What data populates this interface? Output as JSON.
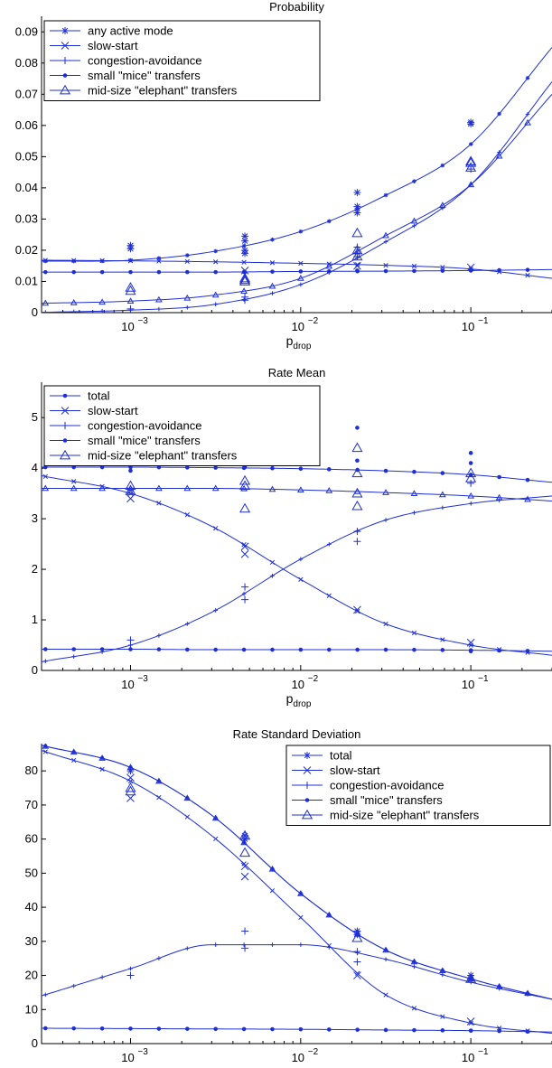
{
  "color": "#1f2fd6",
  "chart_data": [
    {
      "type": "line",
      "title": "Probability",
      "xlabel": "p",
      "xlabel_sub": "drop",
      "xscale": "log",
      "xlim": [
        0.0003,
        0.3
      ],
      "ylim": [
        0,
        0.095
      ],
      "yticks": [
        0,
        0.01,
        0.02,
        0.03,
        0.04,
        0.05,
        0.06,
        0.07,
        0.08,
        0.09
      ],
      "ytick_labels": [
        "0",
        "0.01",
        "0.02",
        "0.03",
        "0.04",
        "0.05",
        "0.06",
        "0.07",
        "0.08",
        "0.09"
      ],
      "xticks": [
        0.001,
        0.01,
        0.1
      ],
      "xtick_labels": [
        {
          "base": "10",
          "exp": "−3"
        },
        {
          "base": "10",
          "exp": "−2"
        },
        {
          "base": "10",
          "exp": "−1"
        }
      ],
      "legend_position": "top-left",
      "series": [
        {
          "name": "any active mode",
          "marker": "star",
          "x": [
            0.0003,
            0.001,
            0.003,
            0.01,
            0.03,
            0.1,
            0.3
          ],
          "y": [
            0.0165,
            0.0168,
            0.0195,
            0.026,
            0.037,
            0.054,
            0.085
          ],
          "samples": [
            [
              0.001,
              0.0205
            ],
            [
              0.001,
              0.0215
            ],
            [
              0.0047,
              0.023
            ],
            [
              0.0047,
              0.0245
            ],
            [
              0.0047,
              0.019
            ],
            [
              0.0047,
              0.02
            ],
            [
              0.0215,
              0.032
            ],
            [
              0.0215,
              0.034
            ],
            [
              0.0215,
              0.0385
            ],
            [
              0.1,
              0.061
            ],
            [
              0.1,
              0.0605
            ]
          ]
        },
        {
          "name": "slow-start",
          "marker": "x",
          "x": [
            0.0003,
            0.001,
            0.003,
            0.01,
            0.03,
            0.1,
            0.3
          ],
          "y": [
            0.0168,
            0.0166,
            0.0163,
            0.0158,
            0.0152,
            0.014,
            0.011
          ],
          "samples": [
            [
              0.0047,
              0.0135
            ],
            [
              0.0215,
              0.015
            ],
            [
              0.1,
              0.0145
            ]
          ]
        },
        {
          "name": "congestion-avoidance",
          "marker": "plus",
          "x": [
            0.0003,
            0.001,
            0.003,
            0.01,
            0.03,
            0.1,
            0.3
          ],
          "y": [
            0.0001,
            0.0008,
            0.0025,
            0.009,
            0.022,
            0.041,
            0.074
          ],
          "samples": [
            [
              0.001,
              0.0012
            ],
            [
              0.0047,
              0.004
            ],
            [
              0.0047,
              0.005
            ],
            [
              0.0215,
              0.018
            ],
            [
              0.0215,
              0.021
            ],
            [
              0.1,
              0.046
            ]
          ]
        },
        {
          "name": "small \"mice\" transfers",
          "marker": "dot",
          "x": [
            0.0003,
            0.001,
            0.003,
            0.01,
            0.03,
            0.1,
            0.3
          ],
          "y": [
            0.013,
            0.013,
            0.013,
            0.0132,
            0.0133,
            0.0135,
            0.0138
          ],
          "samples": [
            [
              0.0047,
              0.013
            ],
            [
              0.0215,
              0.0135
            ],
            [
              0.1,
              0.0135
            ]
          ]
        },
        {
          "name": "mid-size \"elephant\" transfers",
          "marker": "triangle",
          "x": [
            0.0003,
            0.001,
            0.003,
            0.01,
            0.03,
            0.1,
            0.3
          ],
          "y": [
            0.003,
            0.0037,
            0.0055,
            0.011,
            0.024,
            0.041,
            0.07
          ],
          "samples": [
            [
              0.001,
              0.007
            ],
            [
              0.001,
              0.008
            ],
            [
              0.0047,
              0.01
            ],
            [
              0.0047,
              0.0105
            ],
            [
              0.0047,
              0.011
            ],
            [
              0.0215,
              0.018
            ],
            [
              0.0215,
              0.02
            ],
            [
              0.0215,
              0.0255
            ],
            [
              0.1,
              0.0465
            ],
            [
              0.1,
              0.048
            ],
            [
              0.1,
              0.0485
            ]
          ]
        }
      ]
    },
    {
      "type": "line",
      "title": "Rate Mean",
      "xlabel": "p",
      "xlabel_sub": "drop",
      "xscale": "log",
      "xlim": [
        0.0003,
        0.3
      ],
      "ylim": [
        0,
        5.7
      ],
      "yticks": [
        0,
        1,
        2,
        3,
        4,
        5
      ],
      "ytick_labels": [
        "0",
        "1",
        "2",
        "3",
        "4",
        "5"
      ],
      "xticks": [
        0.001,
        0.01,
        0.1
      ],
      "xtick_labels": [
        {
          "base": "10",
          "exp": "−3"
        },
        {
          "base": "10",
          "exp": "−2"
        },
        {
          "base": "10",
          "exp": "−1"
        }
      ],
      "legend_position": "top-left",
      "series": [
        {
          "name": "total",
          "marker": "dot",
          "x": [
            0.0003,
            0.001,
            0.003,
            0.01,
            0.03,
            0.1,
            0.3
          ],
          "y": [
            4.02,
            4.02,
            4.01,
            3.99,
            3.95,
            3.87,
            3.72
          ],
          "samples": [
            [
              0.001,
              3.95
            ],
            [
              0.001,
              4.05
            ],
            [
              0.0047,
              4.15
            ],
            [
              0.0047,
              4.02
            ],
            [
              0.0215,
              4.8
            ],
            [
              0.0215,
              4.15
            ],
            [
              0.1,
              4.3
            ],
            [
              0.1,
              4.1
            ]
          ]
        },
        {
          "name": "slow-start",
          "marker": "x",
          "x": [
            0.0003,
            0.001,
            0.003,
            0.01,
            0.03,
            0.1,
            0.3
          ],
          "y": [
            3.85,
            3.5,
            2.85,
            1.8,
            0.95,
            0.5,
            0.3
          ],
          "samples": [
            [
              0.001,
              3.4
            ],
            [
              0.001,
              3.55
            ],
            [
              0.0047,
              2.45
            ],
            [
              0.0047,
              2.3
            ],
            [
              0.0215,
              1.2
            ],
            [
              0.1,
              0.55
            ]
          ]
        },
        {
          "name": "congestion-avoidance",
          "marker": "plus",
          "x": [
            0.0003,
            0.001,
            0.003,
            0.01,
            0.03,
            0.1,
            0.3
          ],
          "y": [
            0.17,
            0.5,
            1.15,
            2.2,
            2.95,
            3.3,
            3.45
          ],
          "samples": [
            [
              0.001,
              0.6
            ],
            [
              0.0047,
              1.65
            ],
            [
              0.0047,
              1.4
            ],
            [
              0.0215,
              2.75
            ],
            [
              0.0215,
              2.55
            ],
            [
              0.1,
              3.7
            ]
          ]
        },
        {
          "name": "small \"mice\" transfers",
          "marker": "dot",
          "x": [
            0.0003,
            0.001,
            0.003,
            0.01,
            0.03,
            0.1,
            0.3
          ],
          "y": [
            0.42,
            0.42,
            0.41,
            0.41,
            0.41,
            0.4,
            0.38
          ],
          "samples": [
            [
              0.1,
              0.38
            ]
          ]
        },
        {
          "name": "mid-size \"elephant\" transfers",
          "marker": "triangle",
          "x": [
            0.0003,
            0.001,
            0.003,
            0.01,
            0.03,
            0.1,
            0.3
          ],
          "y": [
            3.6,
            3.6,
            3.6,
            3.57,
            3.52,
            3.45,
            3.35
          ],
          "samples": [
            [
              0.001,
              3.55
            ],
            [
              0.001,
              3.65
            ],
            [
              0.0047,
              3.2
            ],
            [
              0.0047,
              3.65
            ],
            [
              0.0047,
              3.75
            ],
            [
              0.0215,
              4.4
            ],
            [
              0.0215,
              3.9
            ],
            [
              0.0215,
              3.5
            ],
            [
              0.0215,
              3.25
            ],
            [
              0.1,
              3.8
            ],
            [
              0.1,
              3.9
            ]
          ]
        }
      ]
    },
    {
      "type": "line",
      "title": "Rate Standard Deviation",
      "xlabel": "p",
      "xlabel_sub": "drop",
      "xscale": "log",
      "xlim": [
        0.0003,
        0.3
      ],
      "ylim": [
        0,
        88
      ],
      "yticks": [
        0,
        10,
        20,
        30,
        40,
        50,
        60,
        70,
        80
      ],
      "ytick_labels": [
        "0",
        "10",
        "20",
        "30",
        "40",
        "50",
        "60",
        "70",
        "80"
      ],
      "xticks": [
        0.001,
        0.01,
        0.1
      ],
      "xtick_labels": [
        {
          "base": "10",
          "exp": "−3"
        },
        {
          "base": "10",
          "exp": "−2"
        },
        {
          "base": "10",
          "exp": "−1"
        }
      ],
      "legend_position": "top-right",
      "series": [
        {
          "name": "total",
          "marker": "star",
          "x": [
            0.0003,
            0.001,
            0.003,
            0.01,
            0.03,
            0.1,
            0.3
          ],
          "y": [
            87.5,
            81,
            67,
            44,
            28,
            19,
            13
          ],
          "samples": [
            [
              0.001,
              80
            ],
            [
              0.0047,
              60
            ],
            [
              0.0047,
              61
            ],
            [
              0.0215,
              32
            ],
            [
              0.0215,
              33
            ],
            [
              0.1,
              19
            ],
            [
              0.1,
              20
            ]
          ]
        },
        {
          "name": "slow-start",
          "marker": "x",
          "x": [
            0.0003,
            0.001,
            0.003,
            0.01,
            0.03,
            0.1,
            0.3
          ],
          "y": [
            86,
            77,
            61,
            37,
            15,
            6,
            3
          ],
          "samples": [
            [
              0.001,
              72
            ],
            [
              0.001,
              78
            ],
            [
              0.0047,
              49
            ],
            [
              0.0047,
              52
            ],
            [
              0.0215,
              20
            ],
            [
              0.1,
              6.5
            ]
          ]
        },
        {
          "name": "congestion-avoidance",
          "marker": "plus",
          "x": [
            0.0003,
            0.001,
            0.003,
            0.01,
            0.03,
            0.1,
            0.3
          ],
          "y": [
            14,
            22,
            29,
            29,
            25,
            18,
            13
          ],
          "samples": [
            [
              0.001,
              20
            ],
            [
              0.0047,
              33
            ],
            [
              0.0047,
              28
            ],
            [
              0.0215,
              27
            ],
            [
              0.0215,
              24
            ]
          ]
        },
        {
          "name": "small \"mice\" transfers",
          "marker": "dot",
          "x": [
            0.0003,
            0.001,
            0.003,
            0.01,
            0.03,
            0.1,
            0.3
          ],
          "y": [
            4.5,
            4.4,
            4.3,
            4.2,
            4.0,
            3.8,
            3.4
          ],
          "samples": [
            [
              0.1,
              3.8
            ]
          ]
        },
        {
          "name": "mid-size \"elephant\" transfers",
          "marker": "triangle",
          "x": [
            0.0003,
            0.001,
            0.003,
            0.01,
            0.03,
            0.1,
            0.3
          ],
          "y": [
            87.5,
            81,
            67,
            44,
            28,
            19,
            13
          ],
          "samples": [
            [
              0.001,
              74
            ],
            [
              0.001,
              75
            ],
            [
              0.0047,
              56
            ],
            [
              0.0047,
              61
            ],
            [
              0.0215,
              31
            ],
            [
              0.1,
              19
            ]
          ]
        }
      ]
    }
  ]
}
